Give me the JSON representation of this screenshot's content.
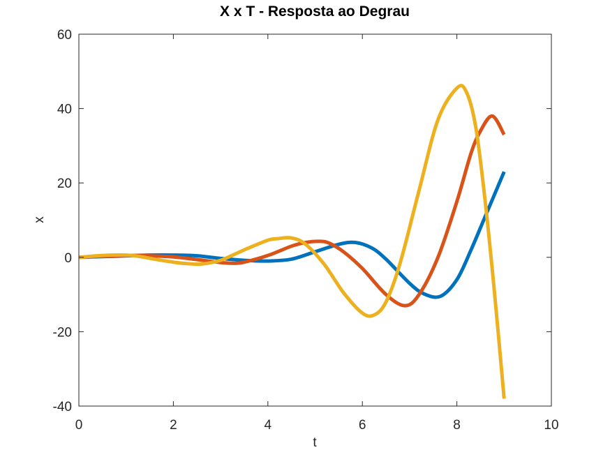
{
  "chart_data": {
    "type": "line",
    "title": "X x T - Resposta ao Degrau",
    "xlabel": "t",
    "ylabel": "x",
    "xlim": [
      0,
      10
    ],
    "ylim": [
      -40,
      60
    ],
    "xticks": [
      0,
      2,
      4,
      6,
      8,
      10
    ],
    "yticks": [
      -40,
      -20,
      0,
      20,
      40,
      60
    ],
    "xtick_labels": [
      "0",
      "2",
      "4",
      "6",
      "8",
      "10"
    ],
    "ytick_labels": [
      "-40",
      "-20",
      "0",
      "20",
      "40",
      "60"
    ],
    "grid": false,
    "series": [
      {
        "color": "#0072BD",
        "x": [
          0,
          0.5,
          1,
          1.5,
          2,
          2.5,
          3,
          3.5,
          4,
          4.5,
          5,
          5.5,
          5.85,
          6.2,
          6.5,
          7,
          7.3,
          7.65,
          8,
          8.3,
          8.6,
          9
        ],
        "y": [
          0,
          0.2,
          0.4,
          0.6,
          0.6,
          0.4,
          -0.3,
          -0.8,
          -1,
          -0.5,
          1.5,
          3.5,
          4,
          2.5,
          -0.5,
          -7,
          -9.8,
          -10.5,
          -6,
          2,
          11,
          23
        ]
      },
      {
        "color": "#D95319",
        "x": [
          0,
          0.5,
          1,
          1.5,
          2,
          2.5,
          3,
          3.3,
          3.5,
          4,
          4.5,
          4.8,
          5.1,
          5.3,
          5.6,
          6,
          6.5,
          6.9,
          7.2,
          7.6,
          8,
          8.3,
          8.5,
          8.75,
          9
        ],
        "y": [
          0,
          0.3,
          0.5,
          0.4,
          0.1,
          -0.6,
          -1.4,
          -1.6,
          -1.3,
          0.5,
          3,
          4,
          4.3,
          3.8,
          1.5,
          -3,
          -10,
          -13,
          -10,
          0,
          15,
          28,
          34,
          38,
          33
        ]
      },
      {
        "color": "#EDB120",
        "x": [
          0,
          0.5,
          1,
          1.3,
          1.6,
          2,
          2.3,
          2.6,
          3,
          3.5,
          4,
          4.2,
          4.5,
          4.8,
          5.2,
          5.6,
          6,
          6.25,
          6.5,
          6.8,
          7.2,
          7.6,
          8,
          8.2,
          8.4,
          8.6,
          8.8,
          9
        ],
        "y": [
          0,
          0.5,
          0.6,
          0.2,
          -0.5,
          -1.3,
          -1.7,
          -1.8,
          -0.8,
          2,
          4.6,
          5,
          5.2,
          3.5,
          -2,
          -9.5,
          -15,
          -15.5,
          -12,
          -1.5,
          18,
          37,
          45.5,
          44.5,
          35,
          15,
          -10,
          -38
        ]
      }
    ]
  }
}
